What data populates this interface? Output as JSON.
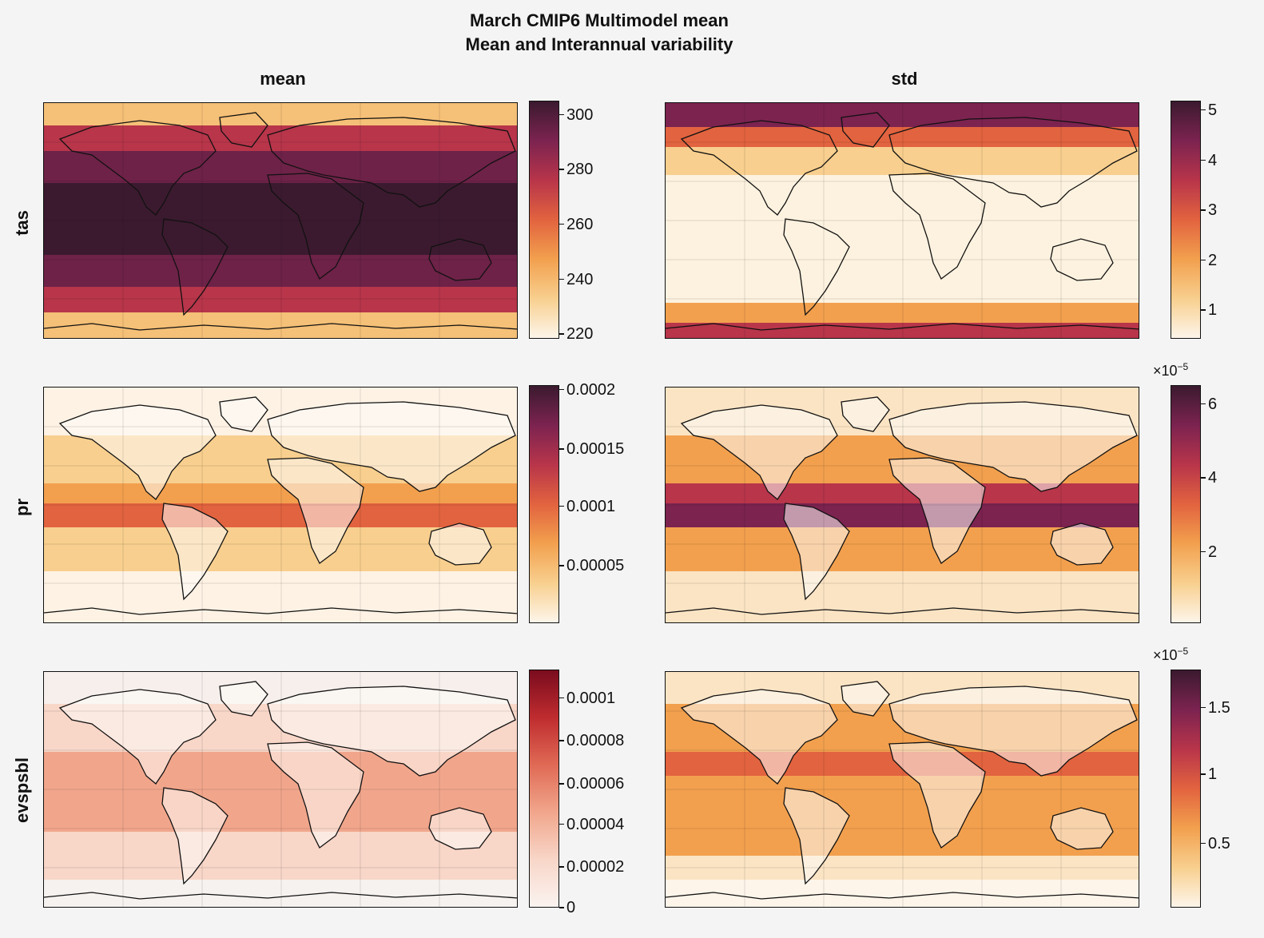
{
  "figure": {
    "title_line1": "March CMIP6 Multimodel mean",
    "title_line2": "Mean and Interannual variability",
    "columns": [
      "mean",
      "std"
    ],
    "rows": [
      "tas",
      "pr",
      "evspsbl"
    ]
  },
  "colorbars": [
    {
      "id": "tas-mean",
      "cmap": "rocket",
      "ticks": [
        "300",
        "280",
        "260",
        "240",
        "220"
      ],
      "tick_pos": [
        0.06,
        0.29,
        0.52,
        0.75,
        0.98
      ],
      "multiplier": ""
    },
    {
      "id": "tas-std",
      "cmap": "rocket",
      "ticks": [
        "5",
        "4",
        "3",
        "2",
        "1"
      ],
      "tick_pos": [
        0.04,
        0.25,
        0.46,
        0.67,
        0.88
      ],
      "multiplier": ""
    },
    {
      "id": "pr-mean",
      "cmap": "rocket",
      "ticks": [
        "0.0002",
        "0.00015",
        "0.0001",
        "0.00005"
      ],
      "tick_pos": [
        0.02,
        0.27,
        0.51,
        0.76
      ],
      "multiplier": ""
    },
    {
      "id": "pr-std",
      "cmap": "rocket",
      "ticks": [
        "6",
        "4",
        "2"
      ],
      "tick_pos": [
        0.08,
        0.39,
        0.7
      ],
      "multiplier": "×10",
      "multiplier_exp": "−5"
    },
    {
      "id": "evspsbl-mean",
      "cmap": "reds",
      "ticks": [
        "0.0001",
        "0.00008",
        "0.00006",
        "0.00004",
        "0.00002",
        "0"
      ],
      "tick_pos": [
        0.12,
        0.3,
        0.48,
        0.65,
        0.83,
        1.0
      ],
      "multiplier": ""
    },
    {
      "id": "evspsbl-std",
      "cmap": "rocket",
      "ticks": [
        "1.5",
        "1",
        "0.5"
      ],
      "tick_pos": [
        0.16,
        0.44,
        0.73
      ],
      "multiplier": "×10",
      "multiplier_exp": "−5"
    }
  ],
  "colors": {
    "rocket": [
      "#fdf5ea",
      "#f8cf8e",
      "#f2a04e",
      "#e2633f",
      "#b8354a",
      "#7c2350",
      "#3b1a2f"
    ],
    "reds": [
      "#fbf3f0",
      "#f8d6c8",
      "#f1a68c",
      "#e06a55",
      "#bf2c2f",
      "#7a0c1e"
    ]
  }
}
